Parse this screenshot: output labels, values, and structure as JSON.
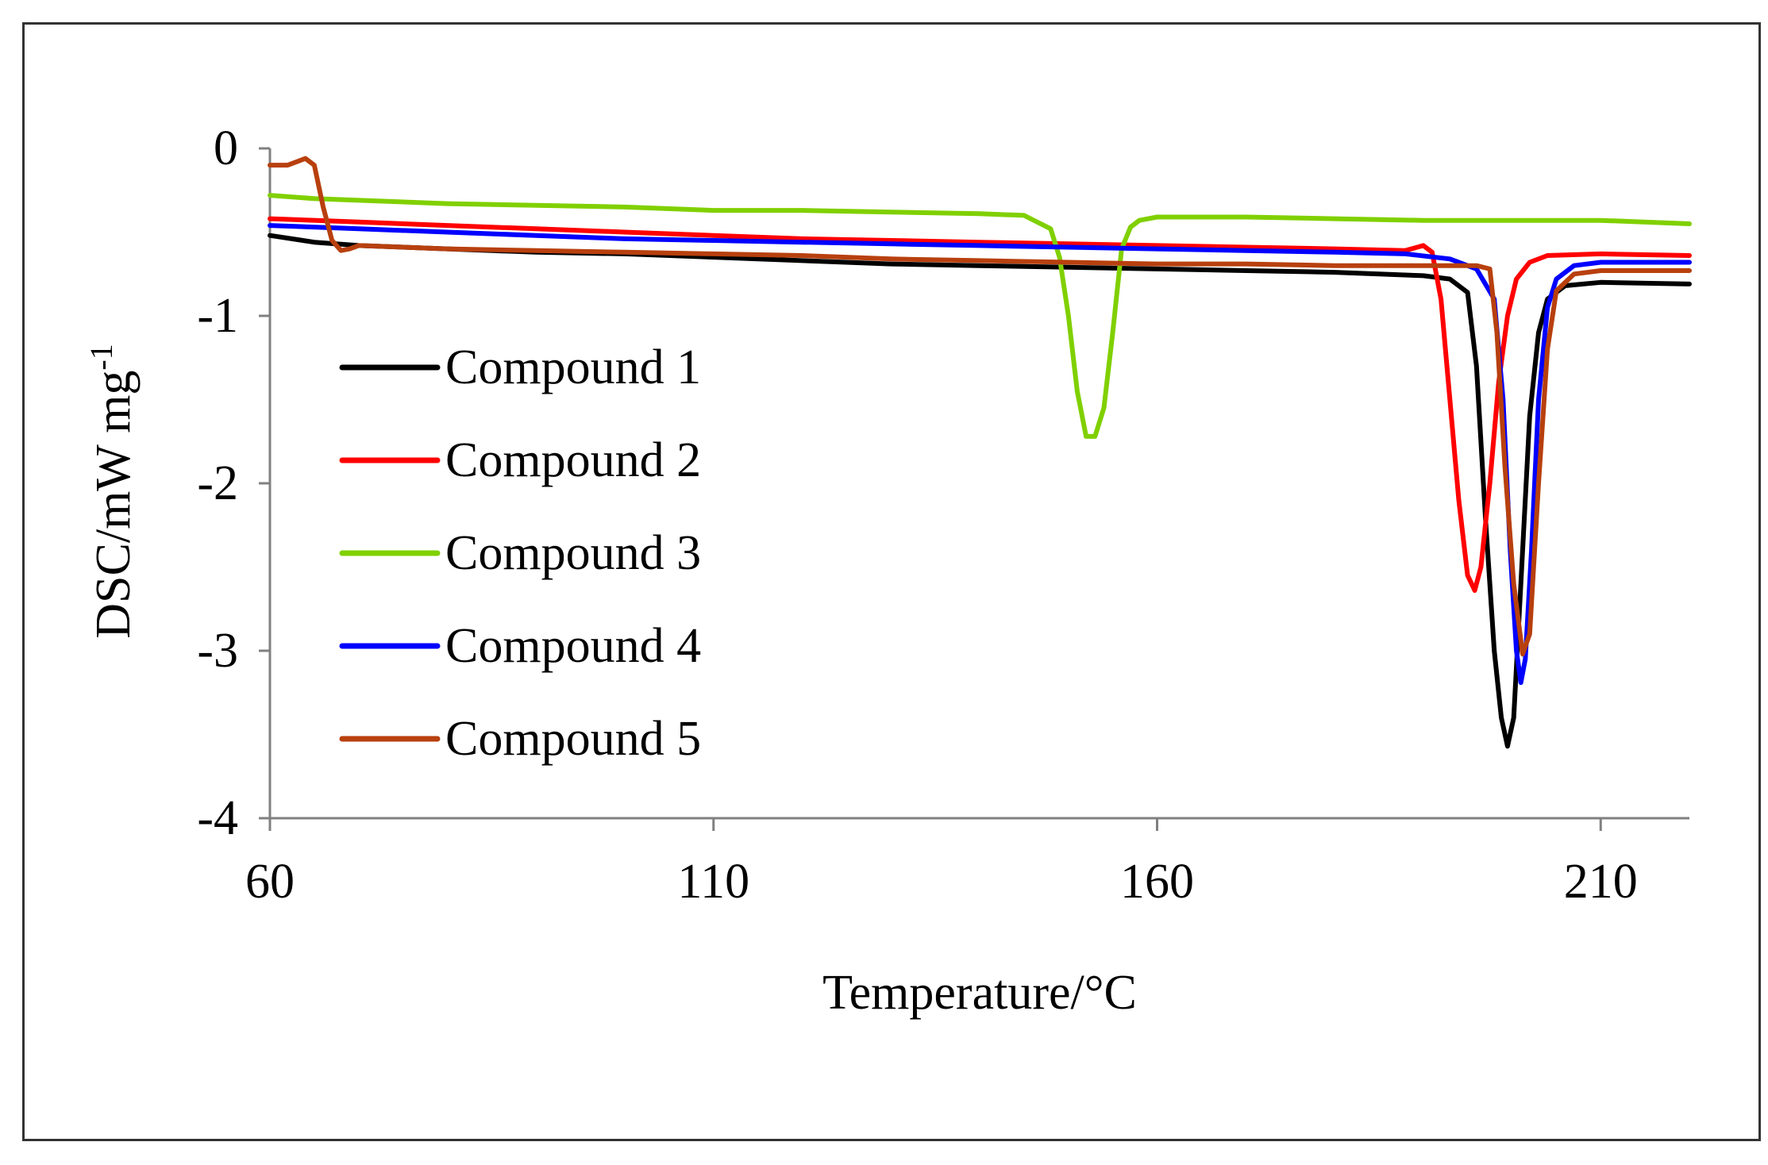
{
  "chart_data": {
    "type": "line",
    "title": "",
    "xlabel": "Temperature/°C",
    "ylabel_main": "DSC/mW mg",
    "ylabel_sup": "-1",
    "xlim": [
      60,
      220
    ],
    "ylim": [
      -4,
      0
    ],
    "xticks": [
      {
        "value": 60,
        "label": "60"
      },
      {
        "value": 110,
        "label": "110"
      },
      {
        "value": 160,
        "label": "160"
      },
      {
        "value": 210,
        "label": "210"
      }
    ],
    "yticks": [
      {
        "value": 0,
        "label": "0"
      },
      {
        "value": -1,
        "label": "-1"
      },
      {
        "value": -2,
        "label": "-2"
      },
      {
        "value": -3,
        "label": "-3"
      },
      {
        "value": -4,
        "label": "-4"
      }
    ],
    "grid": false,
    "legend_position": "left-center",
    "series": [
      {
        "name": "Compound 1",
        "color": "#000000",
        "points": [
          [
            60,
            -0.52
          ],
          [
            65,
            -0.56
          ],
          [
            70,
            -0.58
          ],
          [
            80,
            -0.6
          ],
          [
            90,
            -0.62
          ],
          [
            100,
            -0.63
          ],
          [
            110,
            -0.65
          ],
          [
            120,
            -0.67
          ],
          [
            130,
            -0.69
          ],
          [
            140,
            -0.7
          ],
          [
            150,
            -0.71
          ],
          [
            160,
            -0.72
          ],
          [
            170,
            -0.73
          ],
          [
            180,
            -0.74
          ],
          [
            185,
            -0.75
          ],
          [
            190,
            -0.76
          ],
          [
            193,
            -0.78
          ],
          [
            195,
            -0.86
          ],
          [
            196,
            -1.3
          ],
          [
            197,
            -2.2
          ],
          [
            198,
            -3.0
          ],
          [
            198.8,
            -3.4
          ],
          [
            199.5,
            -3.57
          ],
          [
            200.2,
            -3.4
          ],
          [
            201,
            -2.6
          ],
          [
            202,
            -1.6
          ],
          [
            203,
            -1.1
          ],
          [
            204,
            -0.9
          ],
          [
            206,
            -0.82
          ],
          [
            210,
            -0.8
          ],
          [
            220,
            -0.81
          ]
        ]
      },
      {
        "name": "Compound 2",
        "color": "#ff0000",
        "points": [
          [
            60,
            -0.42
          ],
          [
            70,
            -0.44
          ],
          [
            80,
            -0.46
          ],
          [
            90,
            -0.48
          ],
          [
            100,
            -0.5
          ],
          [
            110,
            -0.52
          ],
          [
            120,
            -0.54
          ],
          [
            130,
            -0.55
          ],
          [
            140,
            -0.56
          ],
          [
            150,
            -0.57
          ],
          [
            160,
            -0.58
          ],
          [
            170,
            -0.59
          ],
          [
            180,
            -0.6
          ],
          [
            188,
            -0.61
          ],
          [
            190,
            -0.58
          ],
          [
            191,
            -0.62
          ],
          [
            192,
            -0.9
          ],
          [
            193,
            -1.5
          ],
          [
            194,
            -2.1
          ],
          [
            195,
            -2.55
          ],
          [
            195.8,
            -2.64
          ],
          [
            196.5,
            -2.5
          ],
          [
            197.5,
            -2.0
          ],
          [
            198.5,
            -1.4
          ],
          [
            199.5,
            -1.0
          ],
          [
            200.5,
            -0.78
          ],
          [
            202,
            -0.68
          ],
          [
            204,
            -0.64
          ],
          [
            210,
            -0.63
          ],
          [
            220,
            -0.64
          ]
        ]
      },
      {
        "name": "Compound 3",
        "color": "#80d000",
        "points": [
          [
            60,
            -0.28
          ],
          [
            65,
            -0.3
          ],
          [
            70,
            -0.31
          ],
          [
            80,
            -0.33
          ],
          [
            90,
            -0.34
          ],
          [
            100,
            -0.35
          ],
          [
            110,
            -0.37
          ],
          [
            120,
            -0.37
          ],
          [
            130,
            -0.38
          ],
          [
            140,
            -0.39
          ],
          [
            145,
            -0.4
          ],
          [
            148,
            -0.48
          ],
          [
            149,
            -0.65
          ],
          [
            150,
            -1.0
          ],
          [
            151,
            -1.45
          ],
          [
            152,
            -1.72
          ],
          [
            153,
            -1.72
          ],
          [
            154,
            -1.55
          ],
          [
            155,
            -1.1
          ],
          [
            156,
            -0.6
          ],
          [
            157,
            -0.47
          ],
          [
            158,
            -0.43
          ],
          [
            160,
            -0.41
          ],
          [
            170,
            -0.41
          ],
          [
            180,
            -0.42
          ],
          [
            190,
            -0.43
          ],
          [
            200,
            -0.43
          ],
          [
            210,
            -0.43
          ],
          [
            220,
            -0.45
          ]
        ]
      },
      {
        "name": "Compound 4",
        "color": "#0000ff",
        "points": [
          [
            60,
            -0.46
          ],
          [
            70,
            -0.48
          ],
          [
            80,
            -0.5
          ],
          [
            90,
            -0.52
          ],
          [
            100,
            -0.54
          ],
          [
            110,
            -0.55
          ],
          [
            120,
            -0.56
          ],
          [
            130,
            -0.57
          ],
          [
            140,
            -0.58
          ],
          [
            150,
            -0.59
          ],
          [
            160,
            -0.6
          ],
          [
            170,
            -0.61
          ],
          [
            180,
            -0.62
          ],
          [
            188,
            -0.63
          ],
          [
            193,
            -0.66
          ],
          [
            196,
            -0.72
          ],
          [
            198,
            -0.9
          ],
          [
            199,
            -1.5
          ],
          [
            199.8,
            -2.4
          ],
          [
            200.5,
            -3.0
          ],
          [
            201,
            -3.19
          ],
          [
            201.5,
            -3.05
          ],
          [
            202.2,
            -2.4
          ],
          [
            203,
            -1.5
          ],
          [
            204,
            -0.95
          ],
          [
            205,
            -0.78
          ],
          [
            207,
            -0.7
          ],
          [
            210,
            -0.68
          ],
          [
            220,
            -0.68
          ]
        ]
      },
      {
        "name": "Compound 5",
        "color": "#b8400e",
        "points": [
          [
            60,
            -0.1
          ],
          [
            62,
            -0.1
          ],
          [
            63,
            -0.08
          ],
          [
            64,
            -0.06
          ],
          [
            65,
            -0.1
          ],
          [
            66,
            -0.35
          ],
          [
            67,
            -0.55
          ],
          [
            68,
            -0.61
          ],
          [
            69,
            -0.6
          ],
          [
            70,
            -0.58
          ],
          [
            80,
            -0.6
          ],
          [
            90,
            -0.61
          ],
          [
            100,
            -0.62
          ],
          [
            110,
            -0.63
          ],
          [
            120,
            -0.64
          ],
          [
            130,
            -0.66
          ],
          [
            140,
            -0.67
          ],
          [
            150,
            -0.68
          ],
          [
            160,
            -0.69
          ],
          [
            170,
            -0.69
          ],
          [
            180,
            -0.7
          ],
          [
            190,
            -0.7
          ],
          [
            196,
            -0.7
          ],
          [
            197.5,
            -0.72
          ],
          [
            198.3,
            -1.1
          ],
          [
            199.2,
            -1.9
          ],
          [
            200.2,
            -2.6
          ],
          [
            201.2,
            -3.02
          ],
          [
            202,
            -2.9
          ],
          [
            203,
            -2.0
          ],
          [
            204,
            -1.2
          ],
          [
            205,
            -0.85
          ],
          [
            207,
            -0.75
          ],
          [
            210,
            -0.73
          ],
          [
            220,
            -0.73
          ]
        ]
      }
    ]
  }
}
